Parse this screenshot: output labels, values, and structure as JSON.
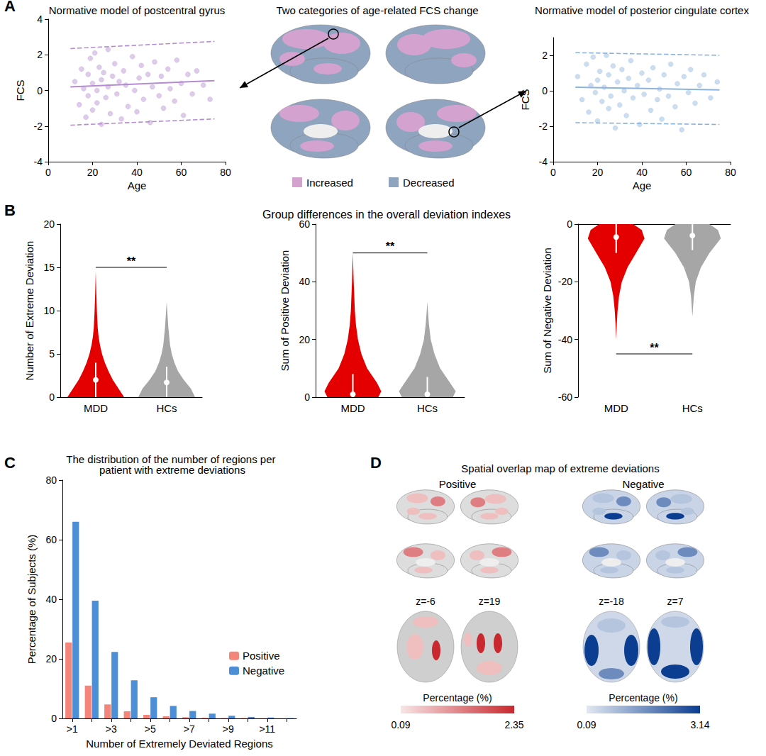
{
  "chart_data": [
    {
      "panel": "A",
      "type": "scatter",
      "title": "Normative model of postcentral gyrus",
      "x_label": "Age",
      "y_label": "FCS",
      "color": "#b48ccf",
      "grid": false,
      "xlim": [
        0,
        80
      ],
      "xticks": [
        0,
        20,
        40,
        60,
        80
      ],
      "ylim": [
        -4,
        4
      ],
      "yticks": [
        -4,
        -2,
        0,
        2,
        4
      ],
      "x": [
        12,
        14,
        15,
        16,
        17,
        18,
        18,
        19,
        20,
        20,
        21,
        22,
        22,
        23,
        24,
        24,
        25,
        26,
        27,
        27,
        28,
        29,
        30,
        31,
        32,
        33,
        34,
        35,
        36,
        38,
        39,
        40,
        41,
        42,
        43,
        45,
        46,
        47,
        48,
        50,
        51,
        52,
        54,
        55,
        57,
        58,
        60,
        61,
        63,
        65,
        67,
        70,
        73
      ],
      "y": [
        0.5,
        -0.8,
        1.2,
        0.1,
        -1.5,
        0.9,
        -0.3,
        1.8,
        0.4,
        -1.1,
        2.1,
        0.0,
        -0.7,
        1.3,
        -1.9,
        0.6,
        1.0,
        -0.4,
        2.3,
        0.2,
        -1.3,
        0.8,
        1.5,
        -0.2,
        0.5,
        -1.6,
        1.1,
        0.3,
        -0.9,
        1.9,
        0.0,
        -1.2,
        0.7,
        1.4,
        -0.5,
        0.9,
        -1.8,
        0.2,
        1.6,
        -0.3,
        0.8,
        -1.0,
        1.2,
        0.1,
        -0.6,
        1.7,
        0.4,
        -1.4,
        0.9,
        -0.2,
        1.1,
        0.3,
        -0.5
      ],
      "fit": {
        "x": [
          10,
          75
        ],
        "mean": [
          0.2,
          0.55
        ],
        "upper": [
          2.35,
          2.75
        ],
        "lower": [
          -1.95,
          -1.6
        ]
      }
    },
    {
      "type": "scatter",
      "title": "Normative model of posterior cingulate cortex",
      "x_label": "Age",
      "y_label": "FCS",
      "color": "#8db3dd",
      "grid": false,
      "xlim": [
        0,
        80
      ],
      "xticks": [
        0,
        20,
        40,
        60,
        80
      ],
      "ylim": [
        -4,
        3
      ],
      "yticks": [
        -4,
        -2,
        0,
        2
      ],
      "x": [
        11,
        13,
        15,
        16,
        17,
        18,
        19,
        20,
        20,
        21,
        22,
        23,
        24,
        25,
        25,
        26,
        27,
        28,
        29,
        30,
        31,
        32,
        33,
        34,
        35,
        36,
        38,
        39,
        40,
        41,
        43,
        44,
        45,
        47,
        48,
        49,
        50,
        52,
        53,
        55,
        56,
        58,
        59,
        61,
        62,
        64,
        66,
        68,
        71,
        74
      ],
      "y": [
        0.8,
        -0.5,
        1.5,
        -1.2,
        0.3,
        1.9,
        -0.1,
        0.6,
        -1.7,
        1.1,
        -0.6,
        0.2,
        2.0,
        -1.0,
        0.9,
        -0.3,
        1.4,
        -2.1,
        0.5,
        -0.8,
        1.2,
        0.0,
        -1.4,
        0.7,
        1.7,
        -0.4,
        0.3,
        -1.9,
        1.0,
        -0.2,
        0.6,
        -1.1,
        1.3,
        -0.5,
        0.1,
        -1.6,
        0.9,
        -0.3,
        1.5,
        -0.9,
        0.4,
        -2.2,
        0.8,
        -0.1,
        1.2,
        -0.7,
        0.3,
        0.9,
        -0.4,
        0.5
      ],
      "fit": {
        "x": [
          10,
          75
        ],
        "mean": [
          0.2,
          0.05
        ],
        "upper": [
          2.15,
          2.0
        ],
        "lower": [
          -1.8,
          -1.9
        ]
      }
    },
    {
      "type": "brainmap",
      "title": "Two categories of age-related FCS change",
      "series": [
        {
          "name": "Increased",
          "color": "#d3a2cf"
        },
        {
          "name": "Decreased",
          "color": "#8ea4bf"
        }
      ]
    },
    {
      "panel": "B",
      "type": "violin",
      "title": "Group differences in the overall deviation indexes",
      "y_label": "Number of Extreme Deviation",
      "grid": false,
      "categories": [
        "MDD",
        "HCs"
      ],
      "ylim": [
        0,
        20
      ],
      "yticks": [
        0,
        5,
        10,
        15,
        20
      ],
      "groups": [
        {
          "color": "#e50000",
          "density_y": [
            0,
            1,
            2,
            3,
            4,
            5,
            6,
            7,
            8,
            10,
            12,
            14.5
          ],
          "density": [
            1,
            0.8,
            0.6,
            0.45,
            0.32,
            0.22,
            0.15,
            0.1,
            0.07,
            0.04,
            0.02,
            0
          ],
          "median": 2,
          "whisker": [
            0,
            4
          ]
        },
        {
          "color": "#a6a6a6",
          "density_y": [
            0,
            1,
            2,
            3,
            4,
            5,
            6,
            8,
            10,
            11
          ],
          "density": [
            1,
            0.85,
            0.6,
            0.4,
            0.27,
            0.18,
            0.12,
            0.06,
            0.02,
            0
          ],
          "median": 1.7,
          "whisker": [
            0,
            3.5
          ]
        }
      ],
      "significance": {
        "label": "**",
        "y": 15
      }
    },
    {
      "type": "violin",
      "y_label": "Sum of Positive Deviation",
      "grid": false,
      "categories": [
        "MDD",
        "HCs"
      ],
      "ylim": [
        0,
        60
      ],
      "yticks": [
        0,
        20,
        40,
        60
      ],
      "groups": [
        {
          "color": "#e50000",
          "density_y": [
            0,
            2,
            5,
            10,
            15,
            20,
            25,
            30,
            35,
            40,
            45,
            50
          ],
          "density": [
            0.9,
            1,
            0.85,
            0.5,
            0.3,
            0.18,
            0.11,
            0.07,
            0.05,
            0.03,
            0.015,
            0
          ],
          "median": 1,
          "whisker": [
            0,
            8
          ]
        },
        {
          "color": "#a6a6a6",
          "density_y": [
            0,
            2,
            5,
            10,
            15,
            20,
            25,
            30,
            33
          ],
          "density": [
            0.9,
            1,
            0.8,
            0.45,
            0.25,
            0.12,
            0.06,
            0.02,
            0
          ],
          "median": 1,
          "whisker": [
            0,
            7
          ]
        }
      ],
      "significance": {
        "label": "**",
        "y": 50
      }
    },
    {
      "type": "violin",
      "y_label": "Sum of Negative Deviation",
      "grid": false,
      "categories": [
        "MDD",
        "HCs"
      ],
      "ylim": [
        -60,
        0
      ],
      "yticks": [
        -60,
        -40,
        -20,
        0
      ],
      "groups": [
        {
          "color": "#e50000",
          "density_y": [
            0,
            -2,
            -5,
            -10,
            -15,
            -20,
            -25,
            -30,
            -35,
            -40
          ],
          "density": [
            0.6,
            0.9,
            1,
            0.7,
            0.4,
            0.2,
            0.1,
            0.05,
            0.02,
            0
          ],
          "median": -4.5,
          "whisker": [
            -10,
            0
          ]
        },
        {
          "color": "#a6a6a6",
          "density_y": [
            0,
            -2,
            -5,
            -10,
            -15,
            -20,
            -25,
            -32
          ],
          "density": [
            0.6,
            0.9,
            1,
            0.6,
            0.3,
            0.12,
            0.05,
            0
          ],
          "median": -4,
          "whisker": [
            -9,
            0
          ]
        }
      ],
      "significance": {
        "label": "**",
        "y": -45
      }
    },
    {
      "panel": "C",
      "type": "bar",
      "title": "The distribution of the number of regions per patient with extreme deviations",
      "x_label": "Number of Extremely Deviated Regions",
      "y_label": "Percentage of Subjects (%)",
      "grid": false,
      "legend": "right",
      "categories": [
        ">1",
        null,
        ">3",
        null,
        ">5",
        null,
        ">7",
        null,
        ">9",
        null,
        ">11",
        null
      ],
      "series": [
        {
          "name": "Positive",
          "color": "#f4857a",
          "values": [
            25.5,
            11,
            4.7,
            2.4,
            1.2,
            0.7,
            0.4,
            0.2,
            0.1,
            0.1,
            0.05,
            0
          ]
        },
        {
          "name": "Negative",
          "color": "#4d8fd6",
          "values": [
            66,
            39.5,
            22.3,
            12.8,
            7.1,
            4.2,
            2.5,
            1.6,
            0.9,
            0.5,
            0.3,
            0.1
          ]
        }
      ],
      "ylim": [
        0,
        80
      ],
      "yticks": [
        0,
        20,
        40,
        60,
        80
      ]
    },
    {
      "panel": "D",
      "type": "brainmap",
      "title": "Spatial overlap map of extreme deviations",
      "maps": [
        {
          "name": "Positive",
          "color": "#c8282e",
          "slices": [
            "z=-6",
            "z=19"
          ],
          "colorbar": {
            "label": "Percentage (%)",
            "range": [
              0.09,
              2.35
            ]
          }
        },
        {
          "name": "Negative",
          "color": "#0b3d91",
          "slices": [
            "z=-18",
            "z=7"
          ],
          "colorbar": {
            "label": "Percentage (%)",
            "range": [
              0.09,
              3.14
            ]
          }
        }
      ]
    }
  ]
}
